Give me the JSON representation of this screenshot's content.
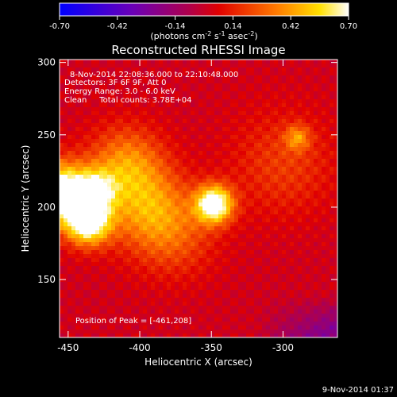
{
  "colorbar": {
    "ticks": [
      "-0.70",
      "-0.42",
      "-0.14",
      "0.14",
      "0.42",
      "0.70"
    ],
    "units_main": "(photons cm",
    "units_exp1": "-2",
    "units_mid": " s",
    "units_exp2": "-1",
    "units_end": " asec",
    "units_exp3": "-2",
    "units_close": ")",
    "range": [
      -0.7,
      0.7
    ]
  },
  "chart_data": {
    "type": "heatmap",
    "title": "Reconstructed RHESSI Image",
    "xlabel": "Heliocentric X (arcsec)",
    "ylabel": "Heliocentric Y (arcsec)",
    "x_ticks": [
      "-450",
      "-400",
      "-350",
      "-300"
    ],
    "y_ticks": [
      "150",
      "200",
      "250",
      "300"
    ],
    "xlim": [
      -456,
      -262
    ],
    "ylim": [
      110,
      302
    ],
    "colormap": "rainbow/fire: blue-purple-red-orange-yellow-white",
    "annotations": [
      "8-Nov-2014 22:08:36.000 to 22:10:48.000",
      "Detectors: 3F 6F 9F, Att 0",
      "Energy Range: 3.0 - 6.0 keV",
      "Clean     Total counts: 3.78E+04"
    ],
    "peak_label": "Position of Peak = [-461,208]",
    "sources": [
      {
        "x": -455,
        "y": 210,
        "amp": 0.85,
        "sigma": 14
      },
      {
        "x": -436,
        "y": 190,
        "amp": 0.8,
        "sigma": 11
      },
      {
        "x": -430,
        "y": 212,
        "amp": 0.45,
        "sigma": 10
      },
      {
        "x": -348,
        "y": 202,
        "amp": 0.8,
        "sigma": 9
      },
      {
        "x": -410,
        "y": 230,
        "amp": 0.35,
        "sigma": 18
      },
      {
        "x": -395,
        "y": 200,
        "amp": 0.35,
        "sigma": 20
      },
      {
        "x": -375,
        "y": 180,
        "amp": 0.2,
        "sigma": 20
      },
      {
        "x": -300,
        "y": 230,
        "amp": 0.18,
        "sigma": 25
      },
      {
        "x": -290,
        "y": 248,
        "amp": 0.3,
        "sigma": 6
      }
    ]
  },
  "footer_timestamp": "9-Nov-2014 01:37"
}
